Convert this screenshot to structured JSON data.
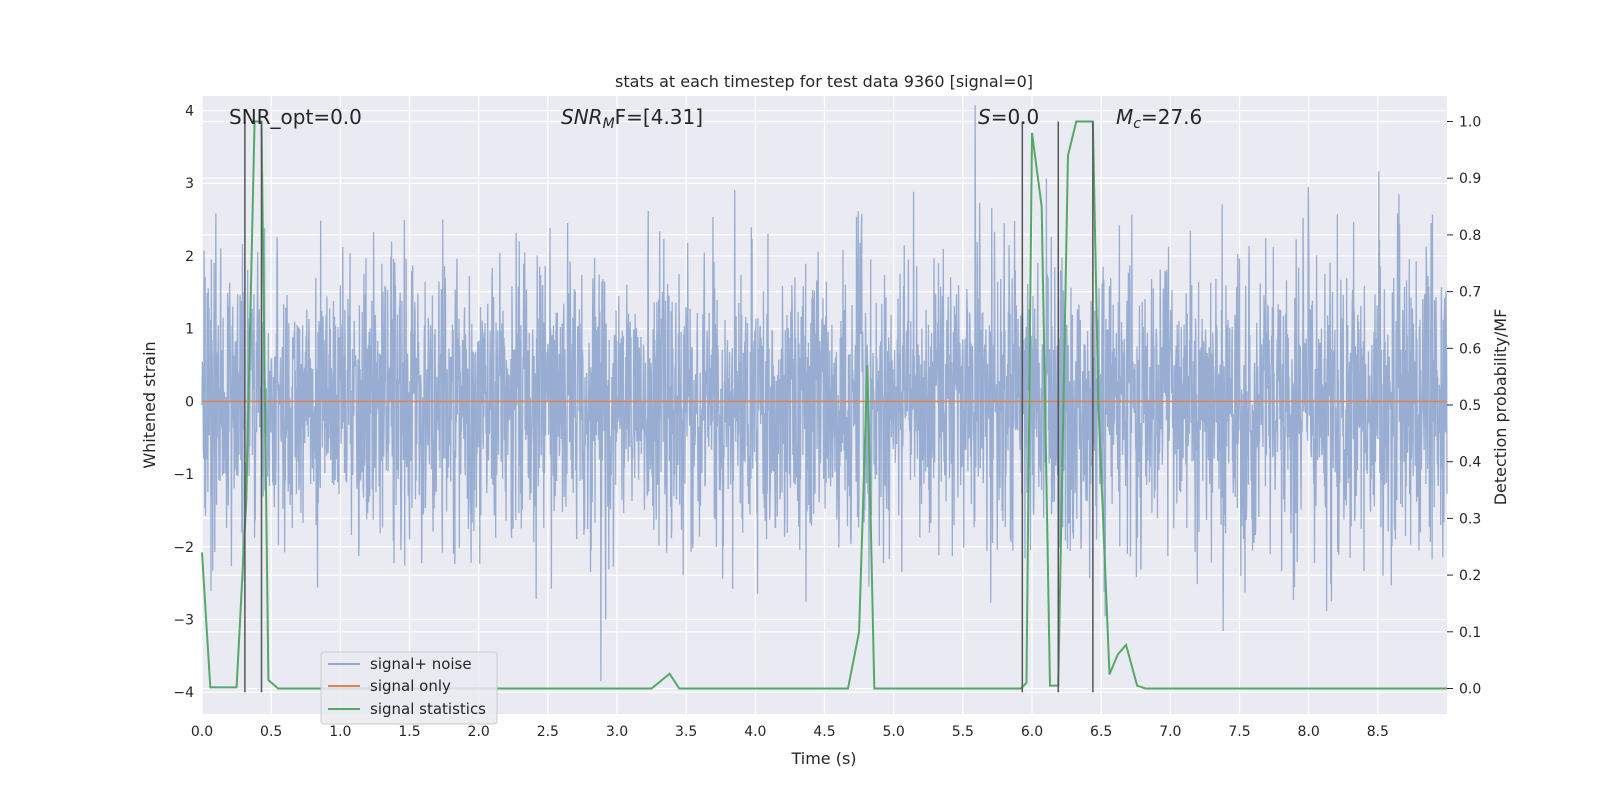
{
  "chart_data": {
    "type": "line",
    "title": "stats at each timestep for test data 9360 [signal=0]",
    "xlabel": "Time (s)",
    "ylabel_left": "Whitened strain",
    "ylabel_right": "Detection probability/MF",
    "xlim": [
      0.0,
      9.0
    ],
    "ylim_left": [
      -4.3,
      4.2
    ],
    "ylim_right": [
      -0.045,
      1.045
    ],
    "x_ticks": [
      "0.0",
      "0.5",
      "1.0",
      "1.5",
      "2.0",
      "2.5",
      "3.0",
      "3.5",
      "4.0",
      "4.5",
      "5.0",
      "5.5",
      "6.0",
      "6.5",
      "7.0",
      "7.5",
      "8.0",
      "8.5"
    ],
    "x_tick_values": [
      0.0,
      0.5,
      1.0,
      1.5,
      2.0,
      2.5,
      3.0,
      3.5,
      4.0,
      4.5,
      5.0,
      5.5,
      6.0,
      6.5,
      7.0,
      7.5,
      8.0,
      8.5
    ],
    "y_left_ticks": [
      "−4",
      "−3",
      "−2",
      "−1",
      "0",
      "1",
      "2",
      "3",
      "4"
    ],
    "y_left_tick_values": [
      -4,
      -3,
      -2,
      -1,
      0,
      1,
      2,
      3,
      4
    ],
    "y_right_ticks": [
      "0.0",
      "0.1",
      "0.2",
      "0.3",
      "0.4",
      "0.5",
      "0.6",
      "0.7",
      "0.8",
      "0.9",
      "1.0"
    ],
    "y_right_tick_values": [
      0.0,
      0.1,
      0.2,
      0.3,
      0.4,
      0.5,
      0.6,
      0.7,
      0.8,
      0.9,
      1.0
    ],
    "annotations": {
      "snr_opt": "SNR_opt=0.0",
      "snr_mf_prefix": "SNR",
      "snr_mf_sub": "M",
      "snr_mf_suffix": "F=[4.31]",
      "s_label": "S",
      "s_value": "=0.0",
      "mc_label": "M",
      "mc_sub": "c",
      "mc_value": "=27.6"
    },
    "series": [
      {
        "name": "signal+ noise",
        "color": "#8fa6cd",
        "description_sigma": 1.0
      },
      {
        "name": "signal only",
        "color": "#dd8452",
        "constant": 0.0
      },
      {
        "name": "signal statistics",
        "color": "#55a868",
        "axis": "right",
        "x": [
          0.0,
          0.06,
          0.25,
          0.32,
          0.38,
          0.43,
          0.48,
          0.55,
          3.25,
          3.38,
          3.45,
          4.67,
          4.75,
          4.81,
          4.86,
          5.92,
          5.96,
          6.0,
          6.07,
          6.13,
          6.19,
          6.26,
          6.32,
          6.44,
          6.48,
          6.56,
          6.62,
          6.68,
          6.76,
          6.82,
          9.0
        ],
        "values": [
          0.24,
          0.002,
          0.002,
          0.33,
          1.0,
          1.0,
          0.015,
          0.0,
          0.0,
          0.026,
          0.0,
          0.0,
          0.1,
          0.57,
          0.0,
          0.0,
          0.01,
          0.98,
          0.85,
          0.005,
          0.005,
          0.94,
          1.0,
          1.0,
          0.5,
          0.025,
          0.06,
          0.077,
          0.005,
          0.0,
          0.0
        ]
      }
    ],
    "vertical_lines_x": [
      0.31,
      0.43,
      5.93,
      6.19,
      6.44
    ],
    "legend_position": "lower-left"
  }
}
